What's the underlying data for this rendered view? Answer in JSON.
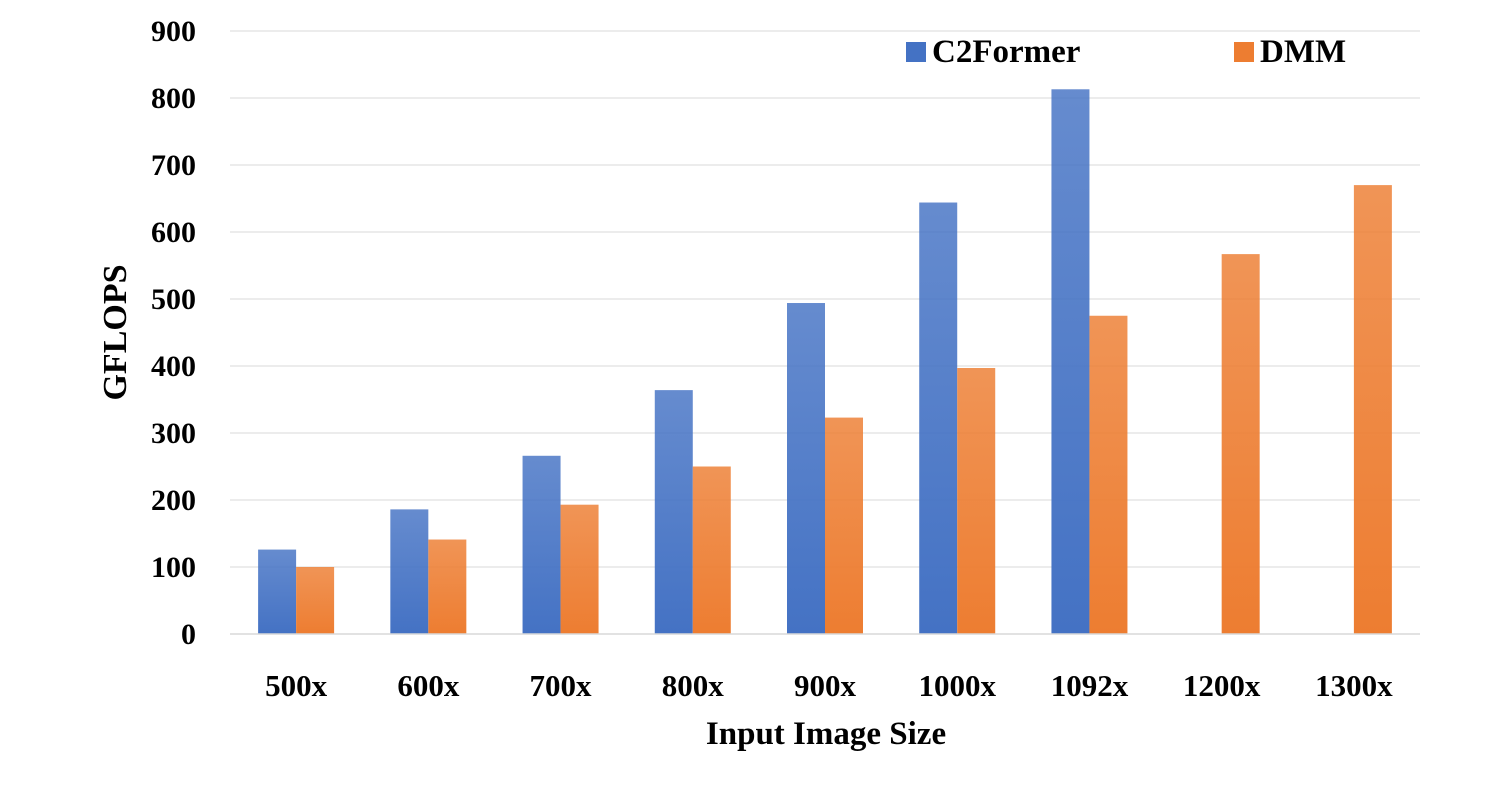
{
  "chart_data": {
    "type": "bar",
    "title": "",
    "xlabel": "Input Image Size",
    "ylabel": "GFLOPS",
    "categories": [
      "500x",
      "600x",
      "700x",
      "800x",
      "900x",
      "1000x",
      "1092x",
      "1200x",
      "1300x"
    ],
    "series": [
      {
        "name": "C2Former",
        "color": "#4472C4",
        "values": [
          126,
          186,
          266,
          364,
          494,
          644,
          813,
          null,
          null
        ]
      },
      {
        "name": "DMM",
        "color": "#ED7D31",
        "values": [
          100,
          141,
          193,
          250,
          323,
          397,
          475,
          567,
          670
        ]
      }
    ],
    "ylim": [
      0,
      900
    ],
    "yticks": [
      0,
      100,
      200,
      300,
      400,
      500,
      600,
      700,
      800,
      900
    ],
    "grid": true,
    "legend_position": "top-right"
  }
}
